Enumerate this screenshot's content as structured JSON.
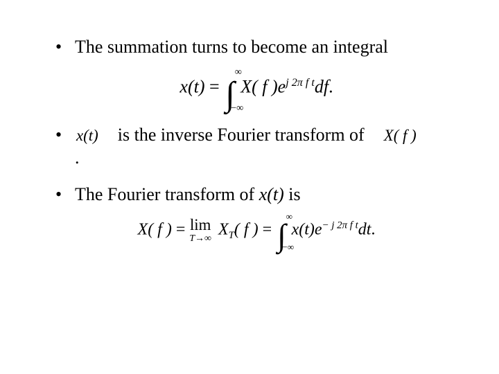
{
  "slide": {
    "background_color": "#ffffff",
    "text_color": "#000000",
    "font_family": "Times New Roman",
    "body_fontsize_pt": 26,
    "bullets": [
      {
        "text": "The summation turns to become an integral"
      },
      {
        "prefix_math": "x(t)",
        "mid_text": "is the inverse Fourier transform of",
        "suffix_math": "X( f )",
        "trailing_period": "."
      },
      {
        "pre_text": "The Fourier transform of ",
        "inline_italic": "x(t)",
        "post_text": " is"
      }
    ],
    "equation1": {
      "lhs": "x(t)",
      "equals": "=",
      "int_upper": "∞",
      "int_lower": "−∞",
      "integrand_X": "X( f )e",
      "exp": "j 2π f t",
      "df": "df",
      "period": "."
    },
    "equation2": {
      "Xf": "X( f )",
      "eq1": "=",
      "lim_label": "lim",
      "lim_sub": "T→∞",
      "XTf": "X",
      "XT_sub": "T",
      "XTf_tail": "( f )",
      "eq2": "=",
      "int_upper": "∞",
      "int_lower": "−∞",
      "integrand_x": "x(t)e",
      "exp": "− j 2π f  t",
      "dt": "dt",
      "period": "."
    }
  }
}
